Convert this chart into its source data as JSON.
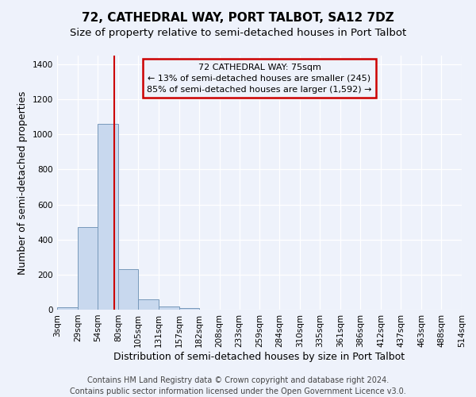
{
  "title": "72, CATHEDRAL WAY, PORT TALBOT, SA12 7DZ",
  "subtitle": "Size of property relative to semi-detached houses in Port Talbot",
  "xlabel": "Distribution of semi-detached houses by size in Port Talbot",
  "ylabel": "Number of semi-detached properties",
  "footer_line1": "Contains HM Land Registry data © Crown copyright and database right 2024.",
  "footer_line2": "Contains public sector information licensed under the Open Government Licence v3.0.",
  "bar_color": "#c8d8ee",
  "bar_edge_color": "#7799bb",
  "annotation_box_color": "#cc0000",
  "property_line_color": "#cc0000",
  "property_value": 75,
  "annotation_text_line1": "72 CATHEDRAL WAY: 75sqm",
  "annotation_text_line2": "← 13% of semi-detached houses are smaller (245)",
  "annotation_text_line3": "85% of semi-detached houses are larger (1,592) →",
  "bin_edges": [
    3,
    29,
    54,
    80,
    105,
    131,
    157,
    182,
    208,
    233,
    259,
    284,
    310,
    335,
    361,
    386,
    412,
    437,
    463,
    488,
    514
  ],
  "bin_labels": [
    "3sqm",
    "29sqm",
    "54sqm",
    "80sqm",
    "105sqm",
    "131sqm",
    "157sqm",
    "182sqm",
    "208sqm",
    "233sqm",
    "259sqm",
    "284sqm",
    "310sqm",
    "335sqm",
    "361sqm",
    "386sqm",
    "412sqm",
    "437sqm",
    "463sqm",
    "488sqm",
    "514sqm"
  ],
  "bar_heights": [
    15,
    470,
    1060,
    230,
    60,
    20,
    10,
    0,
    0,
    0,
    0,
    0,
    0,
    0,
    0,
    0,
    0,
    0,
    0,
    0
  ],
  "ylim": [
    0,
    1450
  ],
  "yticks": [
    0,
    200,
    400,
    600,
    800,
    1000,
    1200,
    1400
  ],
  "background_color": "#eef2fb",
  "grid_color": "#ffffff",
  "title_fontsize": 11,
  "subtitle_fontsize": 9.5,
  "axis_label_fontsize": 9,
  "tick_fontsize": 7.5,
  "footer_fontsize": 7,
  "annotation_fontsize": 8
}
